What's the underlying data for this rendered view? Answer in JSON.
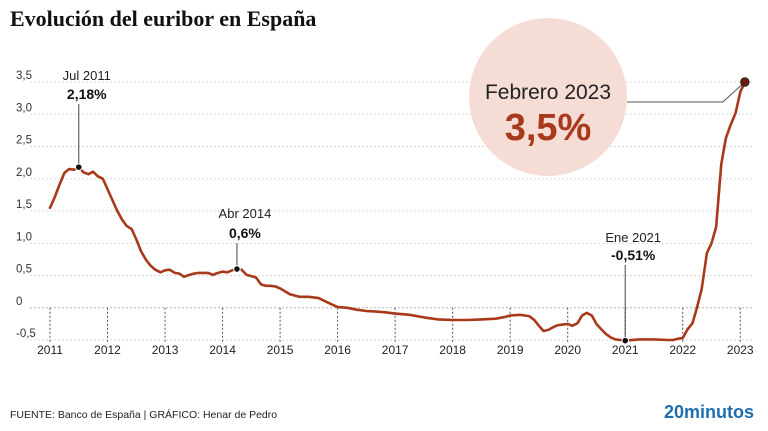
{
  "title": "Evolución del euribor en España",
  "footer": {
    "source": "FUENTE: Banco de España  |  GRÁFICO: Henar de Pedro",
    "brand": "20minutos"
  },
  "colors": {
    "line": "#a8391b",
    "highlight_circle": "#f5dcd5",
    "highlight_value": "#a8391b",
    "grid": "#d9d9d9",
    "text": "#222222",
    "brand": "#1f6fb0"
  },
  "chart_data": {
    "type": "line",
    "title": "Evolución del euribor en España",
    "xlabel": "",
    "ylabel": "",
    "xlim": [
      2011,
      2023.1
    ],
    "ylim": [
      -0.5,
      3.5
    ],
    "x_ticks": [
      "2011",
      "2012",
      "2013",
      "2014",
      "2015",
      "2016",
      "2017",
      "2018",
      "2019",
      "2020",
      "2021",
      "2022",
      "2023"
    ],
    "y_ticks": [
      "3,5",
      "3,0",
      "2,5",
      "2,0",
      "1,5",
      "1,0",
      "0,5",
      "0",
      "-0,5"
    ],
    "grid": "horizontal",
    "series": [
      {
        "name": "",
        "points": [
          [
            2011.0,
            1.55
          ],
          [
            2011.08,
            1.71
          ],
          [
            2011.17,
            1.92
          ],
          [
            2011.25,
            2.09
          ],
          [
            2011.33,
            2.15
          ],
          [
            2011.42,
            2.14
          ],
          [
            2011.5,
            2.18
          ],
          [
            2011.58,
            2.1
          ],
          [
            2011.67,
            2.07
          ],
          [
            2011.75,
            2.11
          ],
          [
            2011.83,
            2.04
          ],
          [
            2011.92,
            2.0
          ],
          [
            2012.0,
            1.84
          ],
          [
            2012.08,
            1.68
          ],
          [
            2012.17,
            1.5
          ],
          [
            2012.25,
            1.37
          ],
          [
            2012.33,
            1.27
          ],
          [
            2012.42,
            1.22
          ],
          [
            2012.5,
            1.06
          ],
          [
            2012.58,
            0.88
          ],
          [
            2012.67,
            0.74
          ],
          [
            2012.75,
            0.65
          ],
          [
            2012.83,
            0.59
          ],
          [
            2012.92,
            0.55
          ],
          [
            2013.0,
            0.58
          ],
          [
            2013.08,
            0.59
          ],
          [
            2013.17,
            0.54
          ],
          [
            2013.25,
            0.53
          ],
          [
            2013.33,
            0.48
          ],
          [
            2013.42,
            0.51
          ],
          [
            2013.5,
            0.53
          ],
          [
            2013.58,
            0.54
          ],
          [
            2013.67,
            0.54
          ],
          [
            2013.75,
            0.54
          ],
          [
            2013.83,
            0.51
          ],
          [
            2013.92,
            0.54
          ],
          [
            2014.0,
            0.56
          ],
          [
            2014.08,
            0.55
          ],
          [
            2014.17,
            0.58
          ],
          [
            2014.25,
            0.6
          ],
          [
            2014.33,
            0.59
          ],
          [
            2014.42,
            0.51
          ],
          [
            2014.5,
            0.49
          ],
          [
            2014.58,
            0.47
          ],
          [
            2014.67,
            0.36
          ],
          [
            2014.75,
            0.34
          ],
          [
            2014.83,
            0.34
          ],
          [
            2014.92,
            0.33
          ],
          [
            2015.0,
            0.3
          ],
          [
            2015.17,
            0.21
          ],
          [
            2015.33,
            0.17
          ],
          [
            2015.5,
            0.17
          ],
          [
            2015.67,
            0.15
          ],
          [
            2015.83,
            0.08
          ],
          [
            2016.0,
            0.01
          ],
          [
            2016.17,
            0.0
          ],
          [
            2016.33,
            -0.03
          ],
          [
            2016.5,
            -0.05
          ],
          [
            2016.67,
            -0.06
          ],
          [
            2016.83,
            -0.07
          ],
          [
            2017.0,
            -0.09
          ],
          [
            2017.25,
            -0.11
          ],
          [
            2017.5,
            -0.15
          ],
          [
            2017.75,
            -0.18
          ],
          [
            2018.0,
            -0.19
          ],
          [
            2018.25,
            -0.19
          ],
          [
            2018.5,
            -0.18
          ],
          [
            2018.75,
            -0.17
          ],
          [
            2018.92,
            -0.14
          ],
          [
            2019.0,
            -0.12
          ],
          [
            2019.17,
            -0.11
          ],
          [
            2019.33,
            -0.13
          ],
          [
            2019.42,
            -0.19
          ],
          [
            2019.5,
            -0.28
          ],
          [
            2019.58,
            -0.36
          ],
          [
            2019.67,
            -0.34
          ],
          [
            2019.75,
            -0.3
          ],
          [
            2019.83,
            -0.27
          ],
          [
            2019.92,
            -0.26
          ],
          [
            2020.0,
            -0.25
          ],
          [
            2020.08,
            -0.28
          ],
          [
            2020.17,
            -0.24
          ],
          [
            2020.25,
            -0.12
          ],
          [
            2020.33,
            -0.08
          ],
          [
            2020.42,
            -0.12
          ],
          [
            2020.5,
            -0.25
          ],
          [
            2020.58,
            -0.33
          ],
          [
            2020.67,
            -0.41
          ],
          [
            2020.75,
            -0.46
          ],
          [
            2020.83,
            -0.49
          ],
          [
            2020.92,
            -0.5
          ],
          [
            2021.0,
            -0.51
          ],
          [
            2021.25,
            -0.49
          ],
          [
            2021.5,
            -0.49
          ],
          [
            2021.75,
            -0.5
          ],
          [
            2021.83,
            -0.5
          ],
          [
            2021.92,
            -0.48
          ],
          [
            2022.0,
            -0.47
          ],
          [
            2022.08,
            -0.34
          ],
          [
            2022.17,
            -0.24
          ],
          [
            2022.25,
            0.01
          ],
          [
            2022.33,
            0.29
          ],
          [
            2022.42,
            0.85
          ],
          [
            2022.5,
            1.0
          ],
          [
            2022.58,
            1.25
          ],
          [
            2022.67,
            2.23
          ],
          [
            2022.75,
            2.63
          ],
          [
            2022.83,
            2.83
          ],
          [
            2022.92,
            3.02
          ],
          [
            2023.0,
            3.34
          ],
          [
            2023.08,
            3.5
          ]
        ]
      }
    ],
    "annotations": [
      {
        "label": "Jul 2011",
        "value": "2,18%",
        "x": 2011.5,
        "y": 2.18
      },
      {
        "label": "Abr 2014",
        "value": "0,6%",
        "x": 2014.25,
        "y": 0.6
      },
      {
        "label": "Ene 2021",
        "value": "-0,51%",
        "x": 2021.0,
        "y": -0.51
      }
    ],
    "highlight": {
      "label": "Febrero 2023",
      "value": "3,5%",
      "x": 2023.08,
      "y": 3.5
    }
  }
}
